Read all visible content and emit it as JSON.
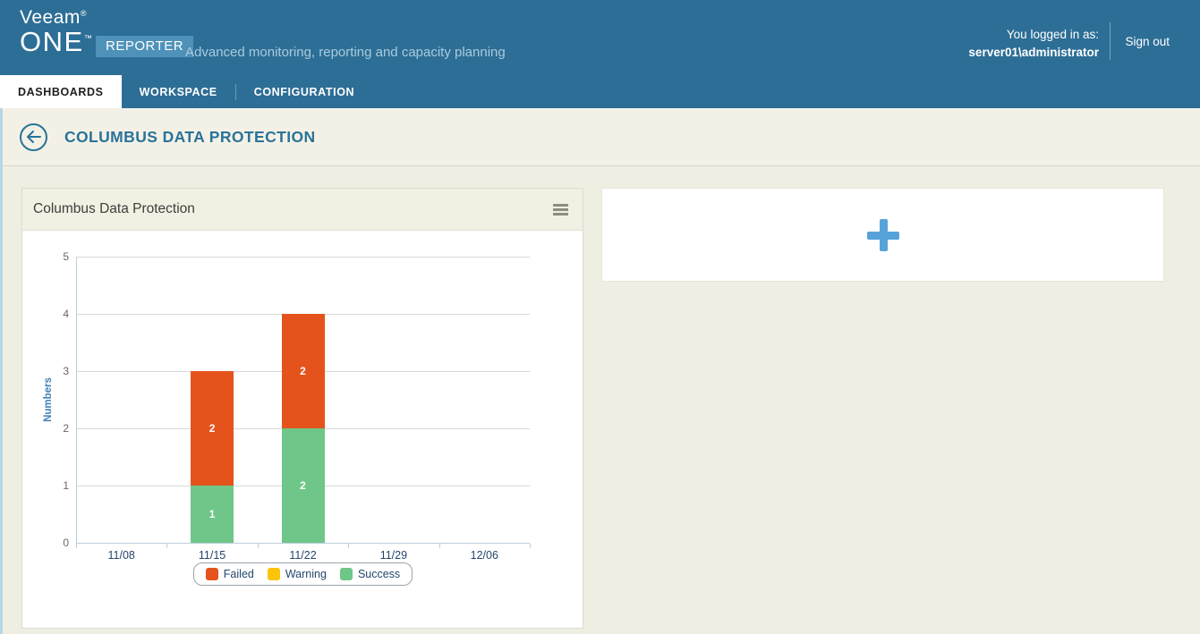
{
  "header": {
    "logo_line1": "Veeam",
    "logo_reg": "®",
    "logo_line2": "ONE",
    "logo_tm": "™",
    "badge": "REPORTER",
    "tagline": "Advanced monitoring, reporting and capacity planning",
    "login_label": "You logged in as:",
    "login_user": "server01\\administrator",
    "signout_label": "Sign out"
  },
  "nav": {
    "tabs": [
      {
        "label": "DASHBOARDS",
        "active": true
      },
      {
        "label": "WORKSPACE",
        "active": false
      },
      {
        "label": "CONFIGURATION",
        "active": false
      }
    ]
  },
  "page": {
    "title": "COLUMBUS DATA PROTECTION",
    "back_icon": "left-arrow-circle-icon"
  },
  "widget": {
    "title": "Columbus Data Protection",
    "menu_icon": "hamburger-menu-icon"
  },
  "add_panel": {
    "icon": "plus-icon"
  },
  "colors": {
    "header_blue": "#2d6e96",
    "badge_blue": "#4e92ba",
    "accent_blue": "#55a3d8",
    "title_blue": "#2a7399",
    "page_bg": "#efeee2",
    "failed_orange": "#e5531d",
    "warning_yellow": "#fdc40a",
    "success_green": "#6fc689"
  },
  "chart_data": {
    "type": "bar",
    "stacked": true,
    "title": "Columbus Data Protection",
    "categories": [
      "11/08",
      "11/15",
      "11/22",
      "11/29",
      "12/06"
    ],
    "series": [
      {
        "name": "Failed",
        "color": "#e5531d",
        "values": [
          0,
          2,
          2,
          0,
          0
        ]
      },
      {
        "name": "Warning",
        "color": "#fdc40a",
        "values": [
          0,
          0,
          0,
          0,
          0
        ]
      },
      {
        "name": "Success",
        "color": "#6fc689",
        "values": [
          0,
          1,
          2,
          0,
          0
        ]
      }
    ],
    "stack_order_bottom_to_top": [
      "Success",
      "Warning",
      "Failed"
    ],
    "xlabel": "",
    "ylabel": "Numbers",
    "ylim": [
      0,
      5
    ],
    "ytick_step": 1,
    "grid": true,
    "legend_position": "bottom"
  }
}
